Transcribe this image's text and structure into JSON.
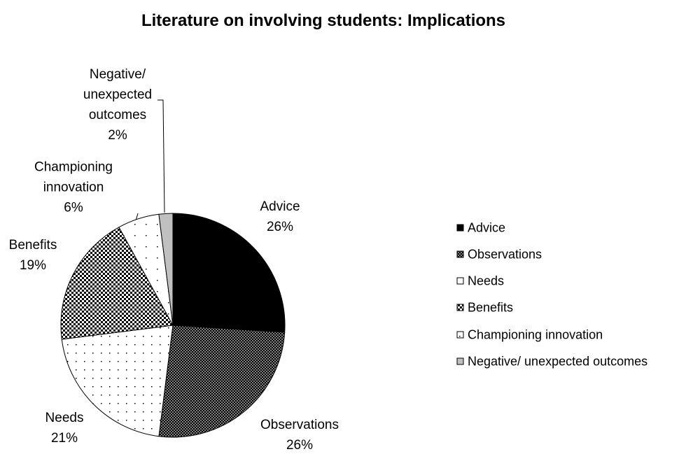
{
  "chart_data": {
    "type": "pie",
    "title": "Literature on involving students: Implications",
    "categories": [
      "Advice",
      "Observations",
      "Needs",
      "Benefits",
      "Championing innovation",
      "Negative/ unexpected outcomes"
    ],
    "values": [
      26,
      26,
      21,
      19,
      6,
      2
    ],
    "value_labels": [
      "26%",
      "26%",
      "21%",
      "19%",
      "6%",
      "2%"
    ],
    "colors": [
      "#000000",
      "#808080",
      "#ffffff",
      "#000000",
      "#ffffff",
      "#c0c0c0"
    ],
    "legend": "right"
  }
}
